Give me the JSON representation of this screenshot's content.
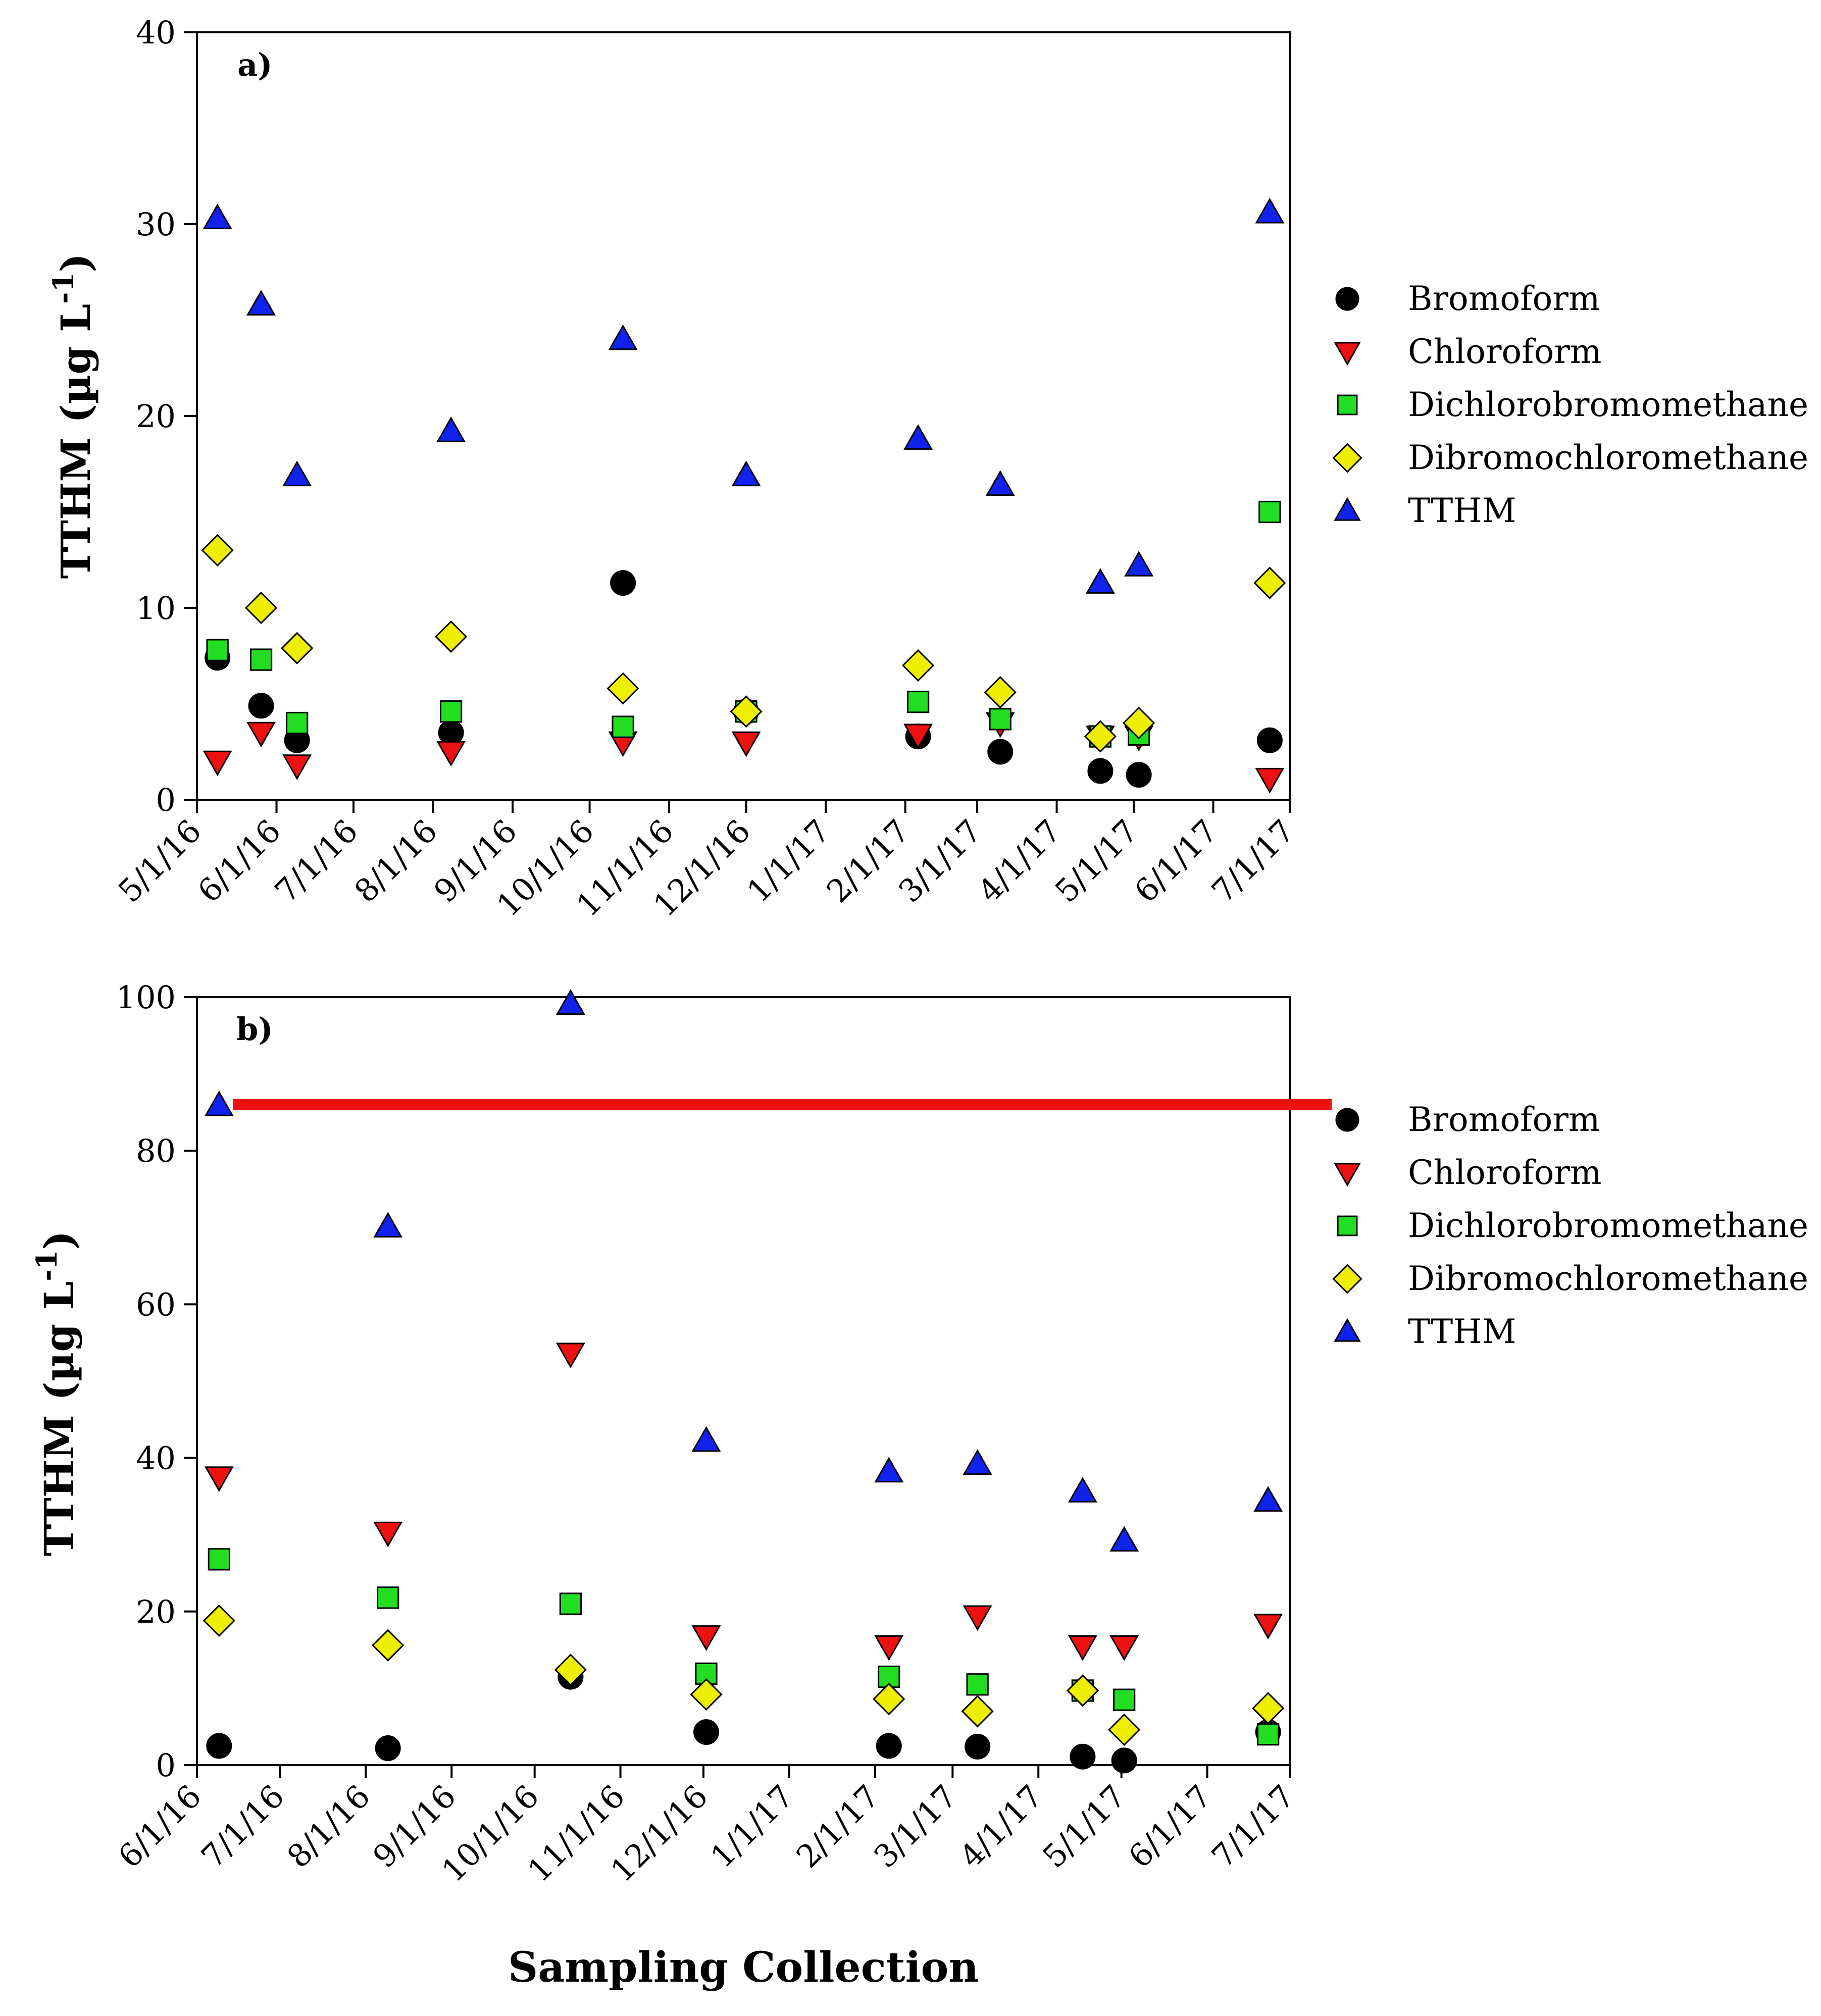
{
  "chart_data": [
    {
      "type": "scatter",
      "panel_label": "a)",
      "ylabel": "TTHM (µg L",
      "ylabel_sup": "-1",
      "ylabel_close": ")",
      "ylim": [
        0,
        40
      ],
      "yticks": [
        0,
        10,
        20,
        30,
        40
      ],
      "xlim_days": [
        0,
        426
      ],
      "xticks": [
        {
          "label": "5/1/16",
          "day": 0
        },
        {
          "label": "6/1/16",
          "day": 31
        },
        {
          "label": "7/1/16",
          "day": 61
        },
        {
          "label": "8/1/16",
          "day": 92
        },
        {
          "label": "9/1/16",
          "day": 123
        },
        {
          "label": "10/1/16",
          "day": 153
        },
        {
          "label": "11/1/16",
          "day": 184
        },
        {
          "label": "12/1/16",
          "day": 214
        },
        {
          "label": "1/1/17",
          "day": 245
        },
        {
          "label": "2/1/17",
          "day": 276
        },
        {
          "label": "3/1/17",
          "day": 304
        },
        {
          "label": "4/1/17",
          "day": 335
        },
        {
          "label": "5/1/17",
          "day": 365
        },
        {
          "label": "6/1/17",
          "day": 396
        },
        {
          "label": "7/1/17",
          "day": 426
        }
      ],
      "x_days": [
        8,
        25,
        39,
        99,
        166,
        214,
        281,
        313,
        352,
        367,
        418
      ],
      "series": [
        {
          "name": "Bromoform",
          "marker": "circle",
          "color": "#000000",
          "values": [
            7.4,
            4.9,
            3.1,
            3.5,
            11.3,
            4.6,
            3.3,
            2.5,
            1.5,
            1.3,
            3.1
          ]
        },
        {
          "name": "Chloroform",
          "marker": "triangle-down",
          "color": "#ee1111",
          "values": [
            2.0,
            3.5,
            1.8,
            2.5,
            3.0,
            3.0,
            3.4,
            4.0,
            3.3,
            3.3,
            1.1
          ]
        },
        {
          "name": "Dichlorobromomethane",
          "marker": "square",
          "color": "#22dd22",
          "values": [
            7.8,
            7.3,
            4.0,
            4.6,
            3.8,
            4.6,
            5.1,
            4.2,
            3.3,
            3.4,
            15.0
          ]
        },
        {
          "name": "Dibromochloromethane",
          "marker": "diamond",
          "color": "#eeee00",
          "values": [
            13.0,
            10.0,
            7.9,
            8.5,
            5.8,
            4.6,
            7.0,
            5.6,
            3.3,
            4.0,
            11.3
          ]
        },
        {
          "name": "TTHM",
          "marker": "triangle-up",
          "color": "#1122ee",
          "values": [
            30.3,
            25.8,
            16.9,
            19.2,
            24.0,
            16.9,
            18.8,
            16.4,
            11.3,
            12.2,
            30.6
          ]
        }
      ]
    },
    {
      "type": "scatter",
      "panel_label": "b)",
      "ylabel": "TTHM (µg L",
      "ylabel_sup": "-1",
      "ylabel_close": ")",
      "ylim": [
        0,
        100
      ],
      "yticks": [
        0,
        20,
        40,
        60,
        80,
        100
      ],
      "xlim_days": [
        0,
        395
      ],
      "xticks": [
        {
          "label": "6/1/16",
          "day": 0
        },
        {
          "label": "7/1/16",
          "day": 30
        },
        {
          "label": "8/1/16",
          "day": 61
        },
        {
          "label": "9/1/16",
          "day": 92
        },
        {
          "label": "10/1/16",
          "day": 122
        },
        {
          "label": "11/1/16",
          "day": 153
        },
        {
          "label": "12/1/16",
          "day": 183
        },
        {
          "label": "1/1/17",
          "day": 214
        },
        {
          "label": "2/1/17",
          "day": 245
        },
        {
          "label": "3/1/17",
          "day": 273
        },
        {
          "label": "4/1/17",
          "day": 304
        },
        {
          "label": "5/1/17",
          "day": 334
        },
        {
          "label": "6/1/17",
          "day": 365
        },
        {
          "label": "7/1/17",
          "day": 395
        }
      ],
      "x_days": [
        8,
        69,
        135,
        184,
        250,
        282,
        320,
        335,
        387
      ],
      "reference_line": {
        "value": 86,
        "x_start_day": 13,
        "color": "#ee1111"
      },
      "series": [
        {
          "name": "Bromoform",
          "marker": "circle",
          "color": "#000000",
          "values": [
            2.5,
            2.2,
            11.5,
            4.3,
            2.5,
            2.4,
            1.1,
            0.6,
            4.3
          ]
        },
        {
          "name": "Chloroform",
          "marker": "triangle-down",
          "color": "#ee1111",
          "values": [
            37.5,
            30.3,
            53.6,
            16.8,
            15.5,
            19.4,
            15.5,
            15.5,
            18.3
          ]
        },
        {
          "name": "Dichlorobromomethane",
          "marker": "square",
          "color": "#22dd22",
          "values": [
            26.8,
            21.8,
            21.0,
            11.9,
            11.5,
            10.5,
            9.7,
            8.5,
            4.0
          ]
        },
        {
          "name": "Dibromochloromethane",
          "marker": "diamond",
          "color": "#eeee00",
          "values": [
            18.8,
            15.6,
            12.4,
            9.2,
            8.6,
            7.0,
            9.7,
            4.6,
            7.4
          ]
        },
        {
          "name": "TTHM",
          "marker": "triangle-up",
          "color": "#1122ee",
          "values": [
            85.9,
            70.1,
            99.1,
            42.2,
            38.2,
            39.2,
            35.6,
            29.2,
            34.4
          ]
        }
      ]
    }
  ],
  "xlabel": "Sampling Collection"
}
